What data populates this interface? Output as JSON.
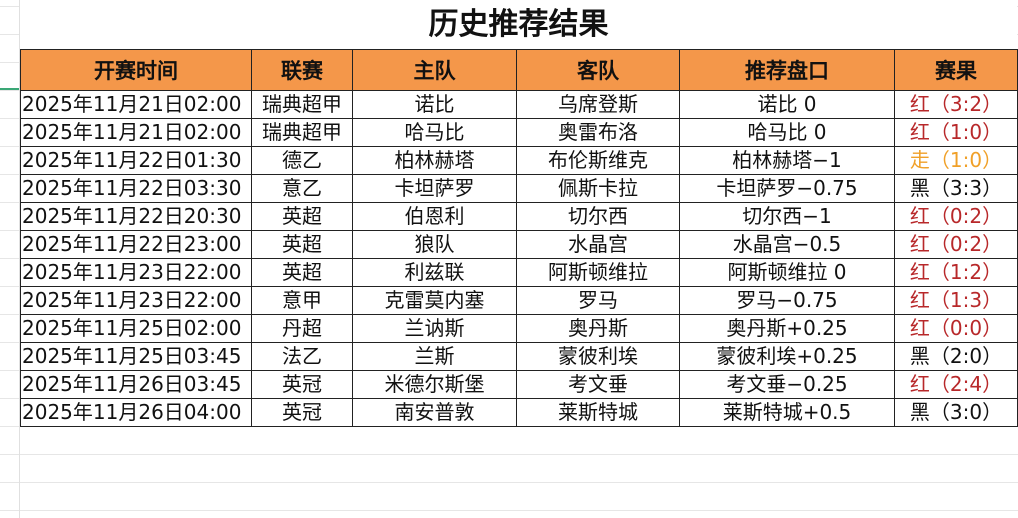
{
  "title": "历史推荐结果",
  "headers": [
    "开赛时间",
    "联赛",
    "主队",
    "客队",
    "推荐盘口",
    "赛果"
  ],
  "colors": {
    "header_bg": "#f4974a",
    "red": "#b8282a",
    "push": "#f0a028",
    "black": "#111111"
  },
  "rows": [
    {
      "time": "2025年11月21日02:00",
      "league": "瑞典超甲",
      "home": "诺比",
      "away": "乌席登斯",
      "pick": "诺比 0",
      "result": "红（3:2）",
      "status": "red"
    },
    {
      "time": "2025年11月21日02:00",
      "league": "瑞典超甲",
      "home": "哈马比",
      "away": "奥雷布洛",
      "pick": "哈马比 0",
      "result": "红（1:0）",
      "status": "red"
    },
    {
      "time": "2025年11月22日01:30",
      "league": "德乙",
      "home": "柏林赫塔",
      "away": "布伦斯维克",
      "pick": "柏林赫塔−1",
      "result": "走（1:0）",
      "status": "orange"
    },
    {
      "time": "2025年11月22日03:30",
      "league": "意乙",
      "home": "卡坦萨罗",
      "away": "佩斯卡拉",
      "pick": "卡坦萨罗−0.75",
      "result": "黑（3:3）",
      "status": "black"
    },
    {
      "time": "2025年11月22日20:30",
      "league": "英超",
      "home": "伯恩利",
      "away": "切尔西",
      "pick": "切尔西−1",
      "result": "红（0:2）",
      "status": "red"
    },
    {
      "time": "2025年11月22日23:00",
      "league": "英超",
      "home": "狼队",
      "away": "水晶宫",
      "pick": "水晶宫−0.5",
      "result": "红（0:2）",
      "status": "red"
    },
    {
      "time": "2025年11月23日22:00",
      "league": "英超",
      "home": "利兹联",
      "away": "阿斯顿维拉",
      "pick": "阿斯顿维拉 0",
      "result": "红（1:2）",
      "status": "red"
    },
    {
      "time": "2025年11月23日22:00",
      "league": "意甲",
      "home": "克雷莫内塞",
      "away": "罗马",
      "pick": "罗马−0.75",
      "result": "红（1:3）",
      "status": "red"
    },
    {
      "time": "2025年11月25日02:00",
      "league": "丹超",
      "home": "兰讷斯",
      "away": "奥丹斯",
      "pick": "奥丹斯+0.25",
      "result": "红（0:0）",
      "status": "red"
    },
    {
      "time": "2025年11月25日03:45",
      "league": "法乙",
      "home": "兰斯",
      "away": "蒙彼利埃",
      "pick": "蒙彼利埃+0.25",
      "result": "黑（2:0）",
      "status": "black"
    },
    {
      "time": "2025年11月26日03:45",
      "league": "英冠",
      "home": "米德尔斯堡",
      "away": "考文垂",
      "pick": "考文垂−0.25",
      "result": "红（2:4）",
      "status": "red"
    },
    {
      "time": "2025年11月26日04:00",
      "league": "英冠",
      "home": "南安普敦",
      "away": "莱斯特城",
      "pick": "莱斯特城+0.5",
      "result": "黑（3:0）",
      "status": "black"
    }
  ]
}
